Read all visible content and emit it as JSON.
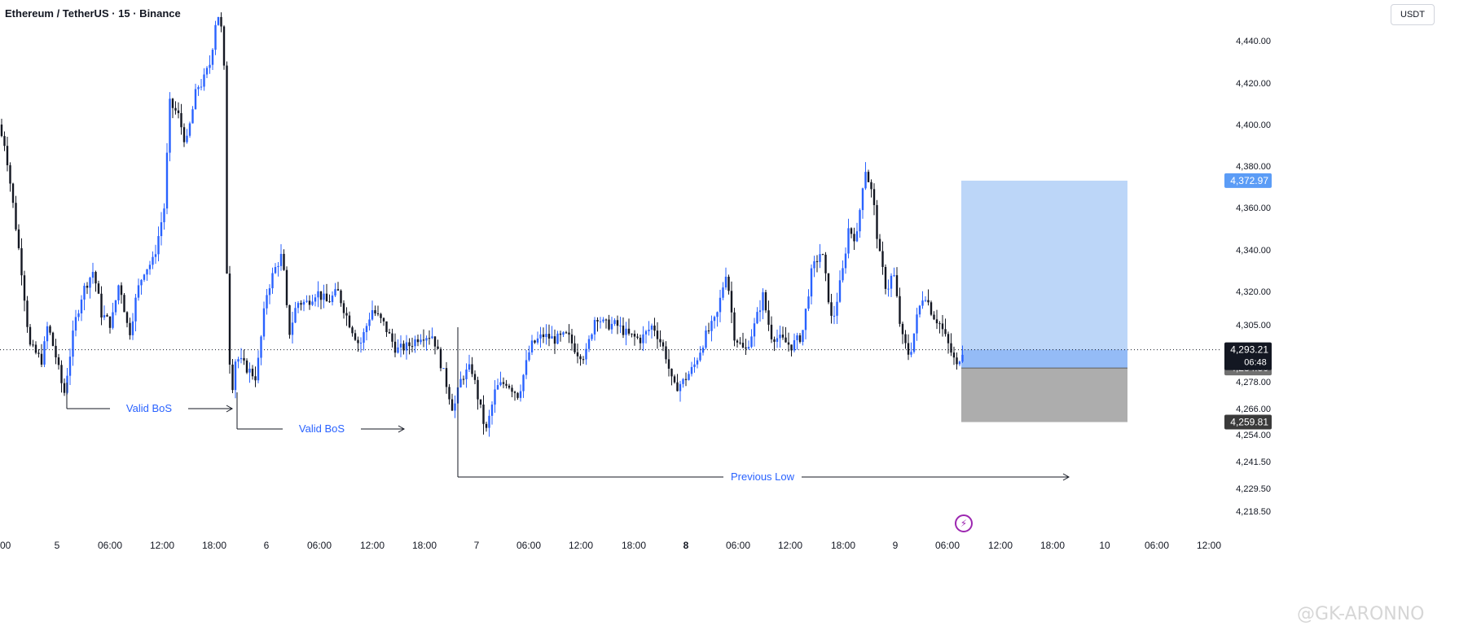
{
  "header": {
    "title": "Ethereum / TetherUS · 15 · Binance",
    "currency": "USDT"
  },
  "watermark": "@GK-ARONNO",
  "icons": {
    "flash": "lightning-icon"
  },
  "colors": {
    "candle": "#131722",
    "wick": "#131722",
    "bull_line": "#2962ff",
    "annotation": "#2962ff",
    "target_zone": "#b8d4f8",
    "stop_zone": "#a9a9a9",
    "price_label_dark": "#131722",
    "price_label_blue": "#5b9cf6",
    "price_label_gray": "#707070"
  },
  "chart_data": {
    "type": "candlestick",
    "title": "Ethereum / TetherUS · 15 · Binance",
    "symbol": "ETH/USDT",
    "interval": "15",
    "exchange": "Binance",
    "ylim": [
      4214,
      4460
    ],
    "y_ticks": [
      "4,440.00",
      "4,420.00",
      "4,400.00",
      "4,380.00",
      "4,360.00",
      "4,340.00",
      "4,320.00",
      "4,305.00",
      "4,278.00",
      "4,266.00",
      "4,254.00",
      "4,241.50",
      "4,229.50",
      "4,218.50"
    ],
    "x_ticks": [
      ":00",
      "5",
      "06:00",
      "12:00",
      "18:00",
      "6",
      "06:00",
      "12:00",
      "18:00",
      "7",
      "06:00",
      "12:00",
      "18:00",
      "8",
      "06:00",
      "12:00",
      "18:00",
      "9",
      "06:00",
      "12:00",
      "18:00",
      "10",
      "06:00",
      "12:00"
    ],
    "price_path": [
      [
        0,
        4400
      ],
      [
        10,
        4390
      ],
      [
        20,
        4360
      ],
      [
        30,
        4330
      ],
      [
        40,
        4295
      ],
      [
        55,
        4288
      ],
      [
        62,
        4305
      ],
      [
        72,
        4290
      ],
      [
        82,
        4272
      ],
      [
        95,
        4305
      ],
      [
        105,
        4320
      ],
      [
        118,
        4330
      ],
      [
        128,
        4310
      ],
      [
        140,
        4305
      ],
      [
        150,
        4325
      ],
      [
        162,
        4300
      ],
      [
        172,
        4320
      ],
      [
        180,
        4330
      ],
      [
        192,
        4335
      ],
      [
        205,
        4360
      ],
      [
        212,
        4410
      ],
      [
        222,
        4405
      ],
      [
        232,
        4390
      ],
      [
        245,
        4418
      ],
      [
        252,
        4420
      ],
      [
        262,
        4430
      ],
      [
        270,
        4455
      ],
      [
        278,
        4440
      ],
      [
        282,
        4330
      ],
      [
        287,
        4270
      ],
      [
        293,
        4290
      ],
      [
        305,
        4285
      ],
      [
        318,
        4280
      ],
      [
        330,
        4318
      ],
      [
        340,
        4330
      ],
      [
        350,
        4338
      ],
      [
        358,
        4300
      ],
      [
        368,
        4315
      ],
      [
        380,
        4315
      ],
      [
        392,
        4320
      ],
      [
        405,
        4315
      ],
      [
        418,
        4320
      ],
      [
        430,
        4308
      ],
      [
        445,
        4295
      ],
      [
        460,
        4312
      ],
      [
        475,
        4305
      ],
      [
        490,
        4293
      ],
      [
        505,
        4295
      ],
      [
        520,
        4300
      ],
      [
        535,
        4300
      ],
      [
        548,
        4282
      ],
      [
        560,
        4265
      ],
      [
        570,
        4280
      ],
      [
        582,
        4285
      ],
      [
        592,
        4268
      ],
      [
        600,
        4255
      ],
      [
        612,
        4275
      ],
      [
        625,
        4278
      ],
      [
        640,
        4272
      ],
      [
        655,
        4295
      ],
      [
        670,
        4300
      ],
      [
        685,
        4298
      ],
      [
        700,
        4300
      ],
      [
        712,
        4292
      ],
      [
        722,
        4290
      ],
      [
        735,
        4310
      ],
      [
        745,
        4305
      ],
      [
        760,
        4305
      ],
      [
        775,
        4300
      ],
      [
        790,
        4298
      ],
      [
        805,
        4305
      ],
      [
        820,
        4292
      ],
      [
        830,
        4275
      ],
      [
        842,
        4278
      ],
      [
        855,
        4285
      ],
      [
        870,
        4300
      ],
      [
        883,
        4308
      ],
      [
        895,
        4330
      ],
      [
        905,
        4300
      ],
      [
        918,
        4292
      ],
      [
        930,
        4305
      ],
      [
        940,
        4318
      ],
      [
        950,
        4300
      ],
      [
        962,
        4298
      ],
      [
        975,
        4295
      ],
      [
        988,
        4300
      ],
      [
        1000,
        4330
      ],
      [
        1012,
        4340
      ],
      [
        1025,
        4305
      ],
      [
        1038,
        4330
      ],
      [
        1045,
        4350
      ],
      [
        1055,
        4345
      ],
      [
        1065,
        4380
      ],
      [
        1075,
        4365
      ],
      [
        1082,
        4340
      ],
      [
        1092,
        4320
      ],
      [
        1100,
        4330
      ],
      [
        1110,
        4300
      ],
      [
        1120,
        4290
      ],
      [
        1130,
        4310
      ],
      [
        1138,
        4320
      ],
      [
        1148,
        4310
      ],
      [
        1158,
        4305
      ],
      [
        1168,
        4295
      ],
      [
        1178,
        4285
      ],
      [
        1184,
        4293
      ]
    ],
    "current_price": 4293.21,
    "countdown": "06:48",
    "position": {
      "type": "long",
      "target": 4372.97,
      "entry": 4284.5,
      "stop": 4259.81
    },
    "annotations": [
      {
        "label": "Valid BoS",
        "level": 4270
      },
      {
        "label": "Valid BoS",
        "level": 4265
      },
      {
        "label": "Previous Low",
        "level": 4235
      }
    ]
  }
}
